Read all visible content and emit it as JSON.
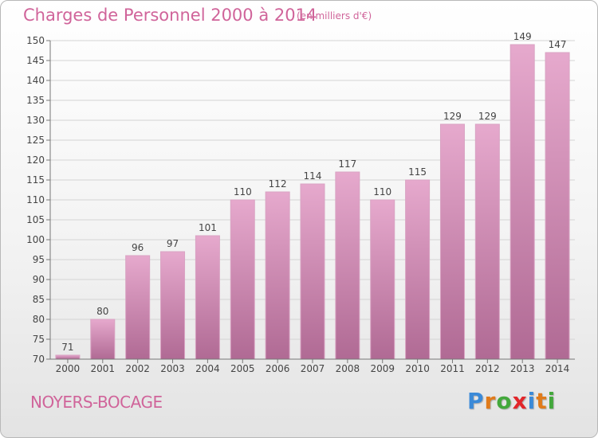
{
  "header": {
    "title": "Charges de Personnel 2000 à 2014",
    "subtitle": "(en milliers d'€)"
  },
  "footer": {
    "city": "NOYERS-BOCAGE",
    "logo": [
      "P",
      "r",
      "o",
      "x",
      "i",
      "t",
      "i"
    ]
  },
  "colors": {
    "accent": "#d0649a",
    "bar_top": "#e6a9cd",
    "bar_bottom": "#b06a94",
    "logo": [
      "#3b8ad8",
      "#e07b1b",
      "#43a83c",
      "#e2262a",
      "#3b8ad8",
      "#e07b1b",
      "#43a83c"
    ]
  },
  "chart_data": {
    "type": "bar",
    "title": "Charges de Personnel 2000 à 2014",
    "subtitle": "(en milliers d'€)",
    "categories": [
      "2000",
      "2001",
      "2002",
      "2003",
      "2004",
      "2005",
      "2006",
      "2007",
      "2008",
      "2009",
      "2010",
      "2011",
      "2012",
      "2013",
      "2014"
    ],
    "values": [
      71,
      80,
      96,
      97,
      101,
      110,
      112,
      114,
      117,
      110,
      115,
      129,
      129,
      149,
      147
    ],
    "ylim": [
      70,
      150
    ],
    "yticks": [
      70,
      75,
      80,
      85,
      90,
      95,
      100,
      105,
      110,
      115,
      120,
      125,
      130,
      135,
      140,
      145,
      150
    ],
    "grid": true,
    "xlabel": "",
    "ylabel": ""
  }
}
